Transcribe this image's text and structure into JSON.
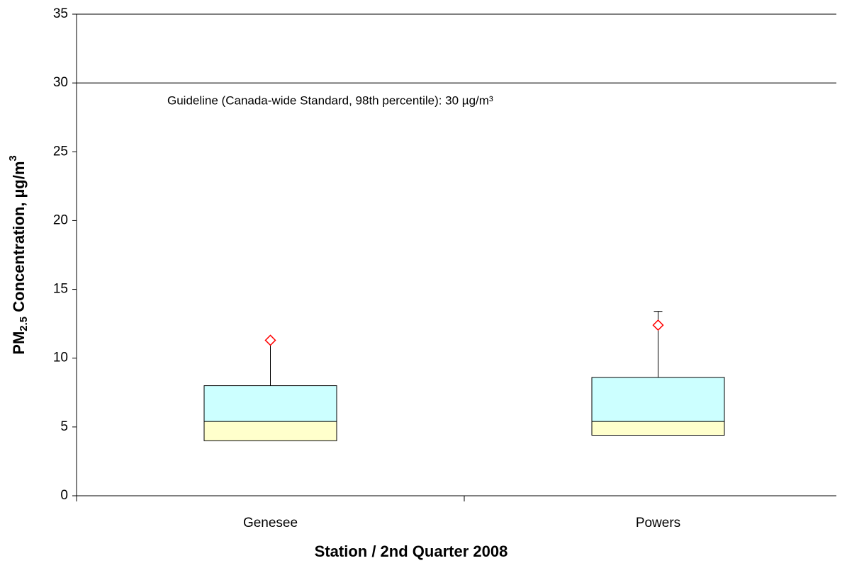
{
  "chart_data": {
    "type": "box",
    "y_label": [
      "PM",
      "2.5",
      " Concentration, µg/m",
      "3"
    ],
    "x_label": "Station / 2nd Quarter 2008",
    "categories": [
      "Genesee",
      "Powers"
    ],
    "q1": [
      4.0,
      4.4
    ],
    "median": [
      5.4,
      5.4
    ],
    "q3": [
      8.0,
      8.6
    ],
    "whisker_high": [
      11.3,
      13.4
    ],
    "p98": [
      11.3,
      12.4
    ],
    "lower_color": "#ffffcc",
    "upper_color": "#ccffff",
    "marker_color": "#ff0000",
    "guideline": {
      "value": 30,
      "label": "Guideline (Canada-wide Standard, 98th percentile): 30 µg/m³"
    },
    "ylim": [
      0,
      35
    ],
    "yticks": [
      0,
      5,
      10,
      15,
      20,
      25,
      30,
      35
    ]
  }
}
